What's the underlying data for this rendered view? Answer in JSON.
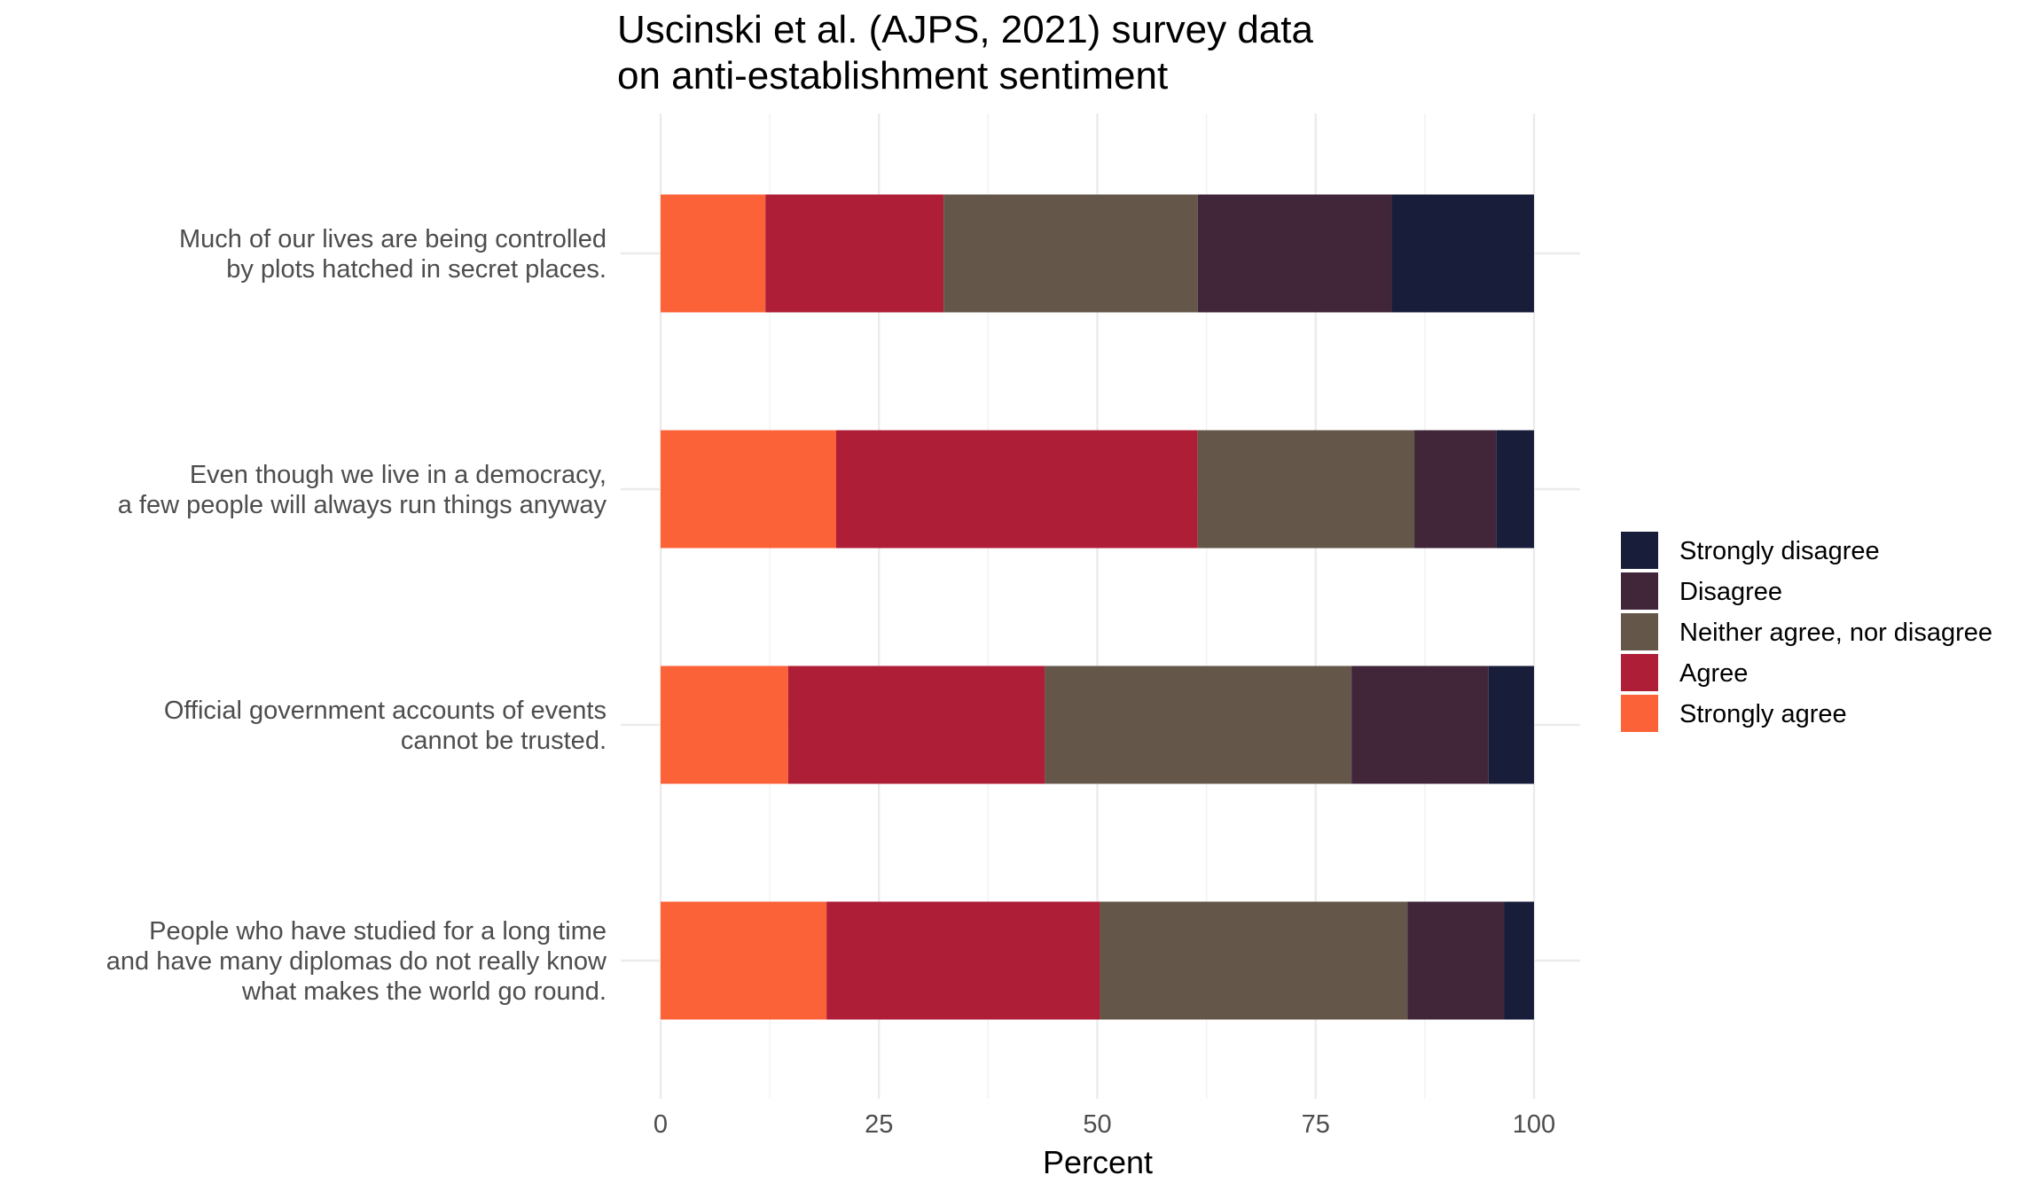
{
  "chart_data": {
    "type": "bar",
    "orientation": "horizontal",
    "stacked": true,
    "title": [
      "Uscinski et al. (AJPS, 2021) survey data",
      "on anti-establishment sentiment"
    ],
    "xlabel": "Percent",
    "ylabel": "",
    "xlim": [
      0,
      100
    ],
    "xticks": [
      "0",
      "25",
      "50",
      "75",
      "100"
    ],
    "grid": true,
    "legend_position": "right",
    "categories": [
      [
        "Much of our lives are being controlled",
        "by plots hatched in secret places."
      ],
      [
        "Even though we live in a democracy,",
        "a few people will always run things anyway"
      ],
      [
        "Official government accounts of events",
        "cannot be trusted."
      ],
      [
        "People who have studied for a long time",
        "and have many diplomas do not really know",
        "what makes the world go round."
      ]
    ],
    "series": [
      {
        "name": "Strongly agree",
        "color": "#FC6238",
        "values": [
          12.0,
          20.1,
          14.6,
          19.0
        ]
      },
      {
        "name": "Agree",
        "color": "#AE1E37",
        "values": [
          20.4,
          41.4,
          29.4,
          31.3
        ]
      },
      {
        "name": "Neither agree, nor disagree",
        "color": "#64574A",
        "values": [
          29.1,
          24.8,
          35.1,
          35.2
        ]
      },
      {
        "name": "Disagree",
        "color": "#41263A",
        "values": [
          22.2,
          9.4,
          15.7,
          11.1
        ]
      },
      {
        "name": "Strongly disagree",
        "color": "#181D3A",
        "values": [
          16.3,
          4.3,
          5.2,
          3.4
        ]
      }
    ],
    "legend_order": [
      "Strongly disagree",
      "Disagree",
      "Neither agree, nor disagree",
      "Agree",
      "Strongly agree"
    ]
  }
}
